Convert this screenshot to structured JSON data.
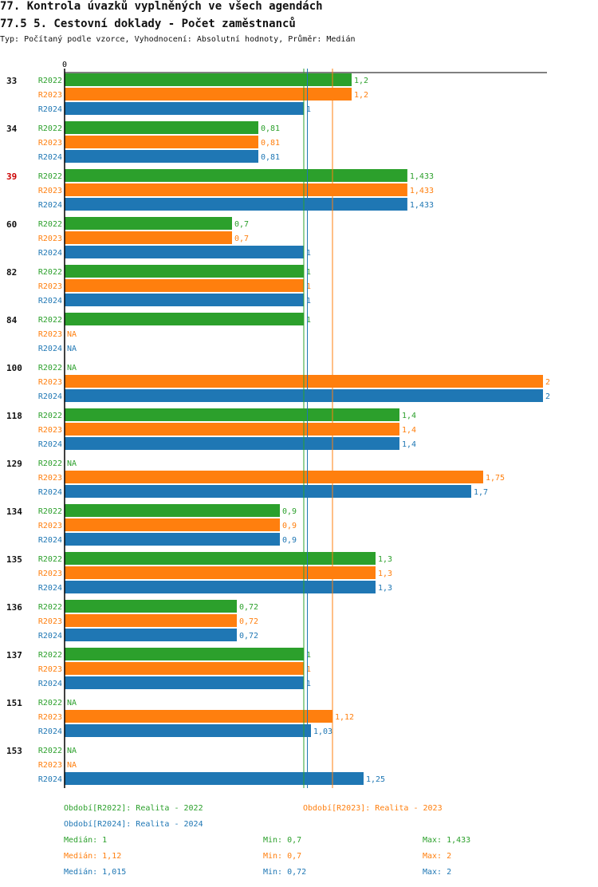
{
  "title": "77. Kontrola úvazků vyplněných ve všech agendách",
  "subtitle": "77.5 5. Cestovní doklady  - Počet zaměstnanců",
  "description": "Typ: Počítaný podle vzorce, Vyhodnocení: Absolutní hodnoty, Průměr: Medián",
  "colors": {
    "R2022": "#2ca02c",
    "R2023": "#ff7f0e",
    "R2024": "#1f77b4",
    "highlight": "#cc0000",
    "text": "#111111"
  },
  "chart_data": {
    "type": "bar",
    "orientation": "horizontal",
    "x_axis_origin_label": "0",
    "x_axis_origin": 0,
    "xlim": [
      0,
      2
    ],
    "series_names": [
      "R2022",
      "R2023",
      "R2024"
    ],
    "groups": [
      {
        "label": "33",
        "highlight": false,
        "values": [
          {
            "series": "R2022",
            "value": 1.2,
            "label": "1,2"
          },
          {
            "series": "R2023",
            "value": 1.2,
            "label": "1,2"
          },
          {
            "series": "R2024",
            "value": 1,
            "label": "1"
          }
        ]
      },
      {
        "label": "34",
        "highlight": false,
        "values": [
          {
            "series": "R2022",
            "value": 0.81,
            "label": "0,81"
          },
          {
            "series": "R2023",
            "value": 0.81,
            "label": "0,81"
          },
          {
            "series": "R2024",
            "value": 0.81,
            "label": "0,81"
          }
        ]
      },
      {
        "label": "39",
        "highlight": true,
        "values": [
          {
            "series": "R2022",
            "value": 1.433,
            "label": "1,433"
          },
          {
            "series": "R2023",
            "value": 1.433,
            "label": "1,433"
          },
          {
            "series": "R2024",
            "value": 1.433,
            "label": "1,433"
          }
        ]
      },
      {
        "label": "60",
        "highlight": false,
        "values": [
          {
            "series": "R2022",
            "value": 0.7,
            "label": "0,7"
          },
          {
            "series": "R2023",
            "value": 0.7,
            "label": "0,7"
          },
          {
            "series": "R2024",
            "value": 1,
            "label": "1"
          }
        ]
      },
      {
        "label": "82",
        "highlight": false,
        "values": [
          {
            "series": "R2022",
            "value": 1,
            "label": "1"
          },
          {
            "series": "R2023",
            "value": 1,
            "label": "1"
          },
          {
            "series": "R2024",
            "value": 1,
            "label": "1"
          }
        ]
      },
      {
        "label": "84",
        "highlight": false,
        "values": [
          {
            "series": "R2022",
            "value": 1,
            "label": "1"
          },
          {
            "series": "R2023",
            "value": null,
            "label": "NA"
          },
          {
            "series": "R2024",
            "value": null,
            "label": "NA"
          }
        ]
      },
      {
        "label": "100",
        "highlight": false,
        "values": [
          {
            "series": "R2022",
            "value": null,
            "label": "NA"
          },
          {
            "series": "R2023",
            "value": 2,
            "label": "2"
          },
          {
            "series": "R2024",
            "value": 2,
            "label": "2"
          }
        ]
      },
      {
        "label": "118",
        "highlight": false,
        "values": [
          {
            "series": "R2022",
            "value": 1.4,
            "label": "1,4"
          },
          {
            "series": "R2023",
            "value": 1.4,
            "label": "1,4"
          },
          {
            "series": "R2024",
            "value": 1.4,
            "label": "1,4"
          }
        ]
      },
      {
        "label": "129",
        "highlight": false,
        "values": [
          {
            "series": "R2022",
            "value": null,
            "label": "NA"
          },
          {
            "series": "R2023",
            "value": 1.75,
            "label": "1,75"
          },
          {
            "series": "R2024",
            "value": 1.7,
            "label": "1,7"
          }
        ]
      },
      {
        "label": "134",
        "highlight": false,
        "values": [
          {
            "series": "R2022",
            "value": 0.9,
            "label": "0,9"
          },
          {
            "series": "R2023",
            "value": 0.9,
            "label": "0,9"
          },
          {
            "series": "R2024",
            "value": 0.9,
            "label": "0,9"
          }
        ]
      },
      {
        "label": "135",
        "highlight": false,
        "values": [
          {
            "series": "R2022",
            "value": 1.3,
            "label": "1,3"
          },
          {
            "series": "R2023",
            "value": 1.3,
            "label": "1,3"
          },
          {
            "series": "R2024",
            "value": 1.3,
            "label": "1,3"
          }
        ]
      },
      {
        "label": "136",
        "highlight": false,
        "values": [
          {
            "series": "R2022",
            "value": 0.72,
            "label": "0,72"
          },
          {
            "series": "R2023",
            "value": 0.72,
            "label": "0,72"
          },
          {
            "series": "R2024",
            "value": 0.72,
            "label": "0,72"
          }
        ]
      },
      {
        "label": "137",
        "highlight": false,
        "values": [
          {
            "series": "R2022",
            "value": 1,
            "label": "1"
          },
          {
            "series": "R2023",
            "value": 1,
            "label": "1"
          },
          {
            "series": "R2024",
            "value": 1,
            "label": "1"
          }
        ]
      },
      {
        "label": "151",
        "highlight": false,
        "values": [
          {
            "series": "R2022",
            "value": null,
            "label": "NA"
          },
          {
            "series": "R2023",
            "value": 1.12,
            "label": "1,12"
          },
          {
            "series": "R2024",
            "value": 1.03,
            "label": "1,03"
          }
        ]
      },
      {
        "label": "153",
        "highlight": false,
        "values": [
          {
            "series": "R2022",
            "value": null,
            "label": "NA"
          },
          {
            "series": "R2023",
            "value": null,
            "label": "NA"
          },
          {
            "series": "R2024",
            "value": 1.25,
            "label": "1,25"
          }
        ]
      }
    ],
    "median_lines": [
      {
        "series": "R2022",
        "value": 1
      },
      {
        "series": "R2023",
        "value": 1.12
      },
      {
        "series": "R2024",
        "value": 1.015
      }
    ]
  },
  "legend": {
    "r2022": "Období[R2022]: Realita - 2022",
    "r2023": "Období[R2023]: Realita - 2023",
    "r2024": "Období[R2024]: Realita - 2024"
  },
  "stats": {
    "r2022": {
      "median": "Medián: 1",
      "min": "Min: 0,7",
      "max": "Max: 1,433"
    },
    "r2023": {
      "median": "Medián: 1,12",
      "min": "Min: 0,7",
      "max": "Max: 2"
    },
    "r2024": {
      "median": "Medián: 1,015",
      "min": "Min: 0,72",
      "max": "Max: 2"
    }
  }
}
